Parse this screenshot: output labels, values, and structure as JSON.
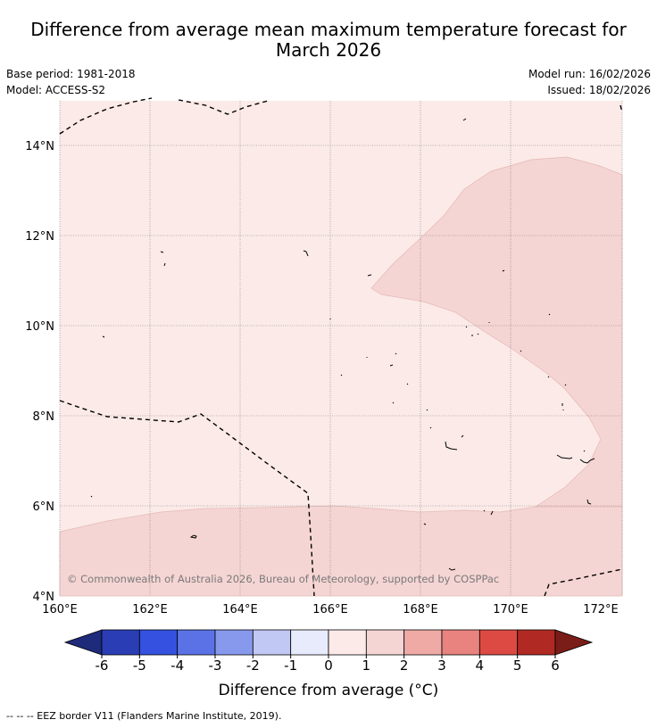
{
  "title_line1": "Difference from average mean maximum temperature forecast for",
  "title_line2": "March 2026",
  "meta": {
    "base_period": "Base period: 1981-2018",
    "model": "Model: ACCESS-S2",
    "model_run": "Model run: 16/02/2026",
    "issued": "Issued: 18/02/2026"
  },
  "map": {
    "lon_ticks": [
      "160°E",
      "162°E",
      "164°E",
      "166°E",
      "168°E",
      "170°E",
      "172°E"
    ],
    "lat_ticks": [
      "14°N",
      "12°N",
      "10°N",
      "8°N",
      "6°N",
      "4°N"
    ],
    "lon_range": [
      160,
      172.5
    ],
    "lat_range": [
      4,
      15
    ],
    "colors": {
      "band_0_1": "#fbeae8",
      "band_1_2": "#f5d5d3"
    },
    "copyright": "© Commonwealth of Australia 2026, Bureau of Meteorology, supported by COSPPac"
  },
  "colorbar": {
    "ticks": [
      "-6",
      "-5",
      "-4",
      "-3",
      "-2",
      "-1",
      "0",
      "1",
      "2",
      "3",
      "4",
      "5",
      "6"
    ],
    "colors": [
      "#1e2a7a",
      "#2a3db5",
      "#3451e0",
      "#5b72e6",
      "#8799ec",
      "#c1c8f4",
      "#e8ebfc",
      "#fbeae8",
      "#f5d5d3",
      "#efaaa6",
      "#e8837f",
      "#dc4a43",
      "#b02a23",
      "#7a1c18"
    ],
    "label": "Difference from average (°C)"
  },
  "footnote": "--  --  -- EEZ border V11 (Flanders Marine Institute, 2019)."
}
